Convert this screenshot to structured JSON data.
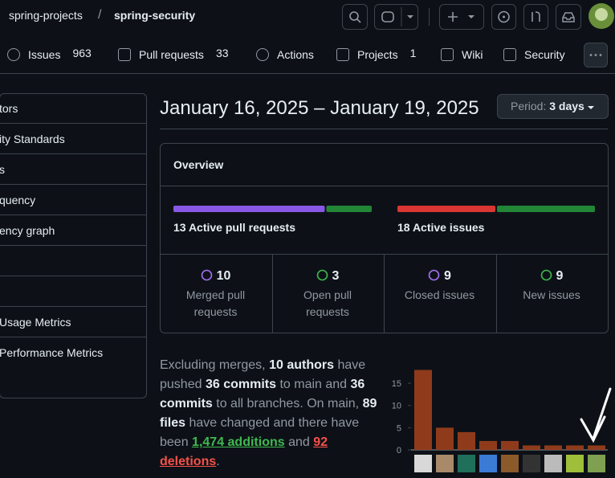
{
  "header": {
    "owner": "spring-projects",
    "separator": "/",
    "repo": "spring-security"
  },
  "nav": [
    {
      "label": "Issues",
      "count": 963
    },
    {
      "label": "Pull requests",
      "count": 33
    },
    {
      "label": "Actions"
    },
    {
      "label": "Projects",
      "count": 1
    },
    {
      "label": "Wiki"
    },
    {
      "label": "Security"
    }
  ],
  "sidebar": [
    "tors",
    "ity Standards",
    "s",
    "quency",
    "ency graph",
    "Usage Metrics",
    "Performance Metrics"
  ],
  "title": "January 16, 2025 – January 19, 2025",
  "period": {
    "label": "Period:",
    "value": "3 days"
  },
  "overview": {
    "heading": "Overview",
    "active_prs": "13 Active pull requests",
    "active_issues": "18 Active issues",
    "stats": [
      {
        "value": 10,
        "label": "Merged pull requests",
        "color": "#a371f7"
      },
      {
        "value": 3,
        "label": "Open pull requests",
        "color": "#3fb950"
      },
      {
        "value": 9,
        "label": "Closed issues",
        "color": "#a371f7"
      },
      {
        "value": 9,
        "label": "New issues",
        "color": "#3fb950"
      }
    ]
  },
  "summary": [
    "Excluding merges,",
    "10 authors",
    "have pushed",
    "36 commits",
    "to main and",
    "36 commits",
    "to all branches. On main,",
    "89 files",
    "have changed and there have been",
    "1,474 additions",
    "and",
    "92 deletions",
    "."
  ],
  "commits_chart": {
    "type": "bar",
    "values": [
      18,
      5,
      4,
      2,
      2,
      1,
      1,
      1,
      1
    ],
    "color": "#8f3b1b",
    "ylim": [
      0,
      18
    ],
    "yticks": [
      0,
      5,
      10,
      15
    ]
  }
}
